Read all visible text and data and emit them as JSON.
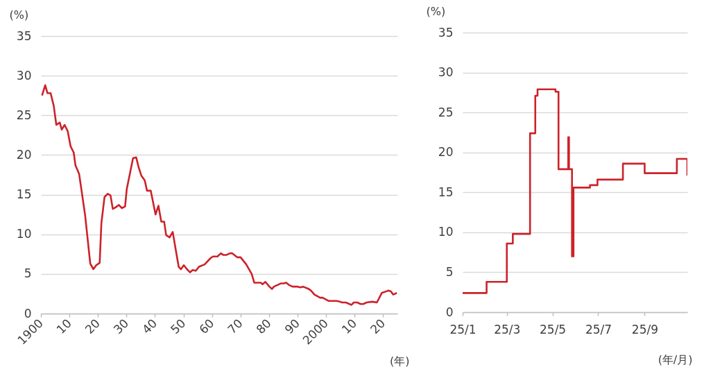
{
  "chart_data": [
    {
      "type": "line",
      "xlabel": "(年)",
      "ylabel": "(%)",
      "grid": "y",
      "x": [
        1900.4,
        1901.5,
        1902.3,
        1903.4,
        1904.5,
        1905.4,
        1906.6,
        1907.3,
        1908.3,
        1909.4,
        1910.4,
        1911.5,
        1912.1,
        1913.4,
        1915.5,
        1917.3,
        1918.4,
        1919.4,
        1920.6,
        1921.2,
        1922.3,
        1923.4,
        1924.4,
        1925.2,
        1926.2,
        1927.3,
        1928.4,
        1929.5,
        1930.1,
        1932.3,
        1933.4,
        1934.3,
        1935.2,
        1936.4,
        1937.2,
        1938.5,
        1940.2,
        1941.2,
        1942.2,
        1943.2,
        1943.9,
        1945.1,
        1946.2,
        1948.3,
        1949.1,
        1950.1,
        1951.2,
        1952.3,
        1953.2,
        1954.3,
        1955.4,
        1957.4,
        1959.5,
        1960.3,
        1961.9,
        1963.1,
        1963.9,
        1965.1,
        1966.3,
        1967.1,
        1968.8,
        1970.0,
        1972.0,
        1973.9,
        1974.8,
        1977.1,
        1977.7,
        1978.7,
        1980.1,
        1981.0,
        1981.7,
        1982.9,
        1984.1,
        1985.2,
        1986.0,
        1987.0,
        1988.2,
        1990.0,
        1991.0,
        1991.9,
        1993.9,
        1994.7,
        1995.9,
        1997.9,
        1998.8,
        2000.8,
        2003.6,
        2004.8,
        2005.6,
        2006.9,
        2008.9,
        2009.7,
        2010.9,
        2012.1,
        2013.0,
        2014.2,
        2016.2,
        2017.8,
        2019.5,
        2021.8,
        2022.7,
        2023.5,
        2024.8
      ],
      "series": [
        {
          "color": "#cc2229",
          "values": [
            27.5,
            28.8,
            27.8,
            27.8,
            26.2,
            23.8,
            24.1,
            23.2,
            23.8,
            23.0,
            21.1,
            20.3,
            18.7,
            17.6,
            12.4,
            6.3,
            5.6,
            6.1,
            6.4,
            11.4,
            14.7,
            15.1,
            14.9,
            13.2,
            13.4,
            13.7,
            13.3,
            13.5,
            15.7,
            19.6,
            19.7,
            18.4,
            17.4,
            16.8,
            15.5,
            15.5,
            12.5,
            13.6,
            11.6,
            11.6,
            9.9,
            9.6,
            10.3,
            5.9,
            5.6,
            6.1,
            5.6,
            5.2,
            5.5,
            5.4,
            5.9,
            6.2,
            7.0,
            7.2,
            7.2,
            7.6,
            7.4,
            7.4,
            7.6,
            7.6,
            7.1,
            7.1,
            6.2,
            5.0,
            3.9,
            3.9,
            3.7,
            4.0,
            3.4,
            3.1,
            3.4,
            3.6,
            3.8,
            3.8,
            3.9,
            3.6,
            3.4,
            3.4,
            3.3,
            3.4,
            3.1,
            2.9,
            2.4,
            2.0,
            2.0,
            1.6,
            1.6,
            1.5,
            1.4,
            1.4,
            1.1,
            1.4,
            1.4,
            1.2,
            1.2,
            1.4,
            1.5,
            1.4,
            2.6,
            2.9,
            2.8,
            2.4,
            2.6
          ]
        }
      ],
      "xlim": [
        1900,
        2025
      ],
      "ylim": [
        0,
        35
      ],
      "yticks": [
        0,
        5,
        10,
        15,
        20,
        25,
        30,
        35
      ],
      "xticks": [
        {
          "value": 1900,
          "label": "1900"
        },
        {
          "value": 1910,
          "label": "10"
        },
        {
          "value": 1920,
          "label": "20"
        },
        {
          "value": 1930,
          "label": "30"
        },
        {
          "value": 1940,
          "label": "40"
        },
        {
          "value": 1950,
          "label": "50"
        },
        {
          "value": 1960,
          "label": "60"
        },
        {
          "value": 1970,
          "label": "70"
        },
        {
          "value": 1980,
          "label": "80"
        },
        {
          "value": 1990,
          "label": "90"
        },
        {
          "value": 2000,
          "label": "2000"
        },
        {
          "value": 2010,
          "label": "10"
        },
        {
          "value": 2020,
          "label": "20"
        }
      ]
    },
    {
      "type": "step",
      "xlabel": "(年/月)",
      "ylabel": "(%)",
      "grid": "y",
      "x": [
        "--01-01",
        "--02-02",
        "--03-01",
        "--03-09",
        "--04-01",
        "--04-08",
        "--04-11",
        "--05-05",
        "--05-09",
        "--05-22",
        "--05-23",
        "--05-27",
        "--05-29",
        "--06-20",
        "--06-30",
        "--08-03",
        "--09-01",
        "--10-14",
        "--10-28"
      ],
      "series": [
        {
          "color": "#cc2229",
          "values": [
            2.4,
            3.8,
            8.6,
            9.8,
            22.4,
            27.1,
            27.9,
            27.6,
            17.9,
            21.9,
            17.9,
            7.0,
            15.6,
            15.9,
            16.6,
            18.6,
            17.4,
            19.2,
            17.1
          ]
        }
      ],
      "xlim": [
        "--01-01",
        "--10-28"
      ],
      "ylim": [
        0,
        35
      ],
      "yticks": [
        0,
        5,
        10,
        15,
        20,
        25,
        30,
        35
      ],
      "xticks": [
        {
          "value": "--01-01",
          "label": "25/1"
        },
        {
          "value": "--03-01",
          "label": "25/3"
        },
        {
          "value": "--05-01",
          "label": "25/5"
        },
        {
          "value": "--07-01",
          "label": "25/7"
        },
        {
          "value": "--09-01",
          "label": "25/9"
        }
      ]
    }
  ]
}
